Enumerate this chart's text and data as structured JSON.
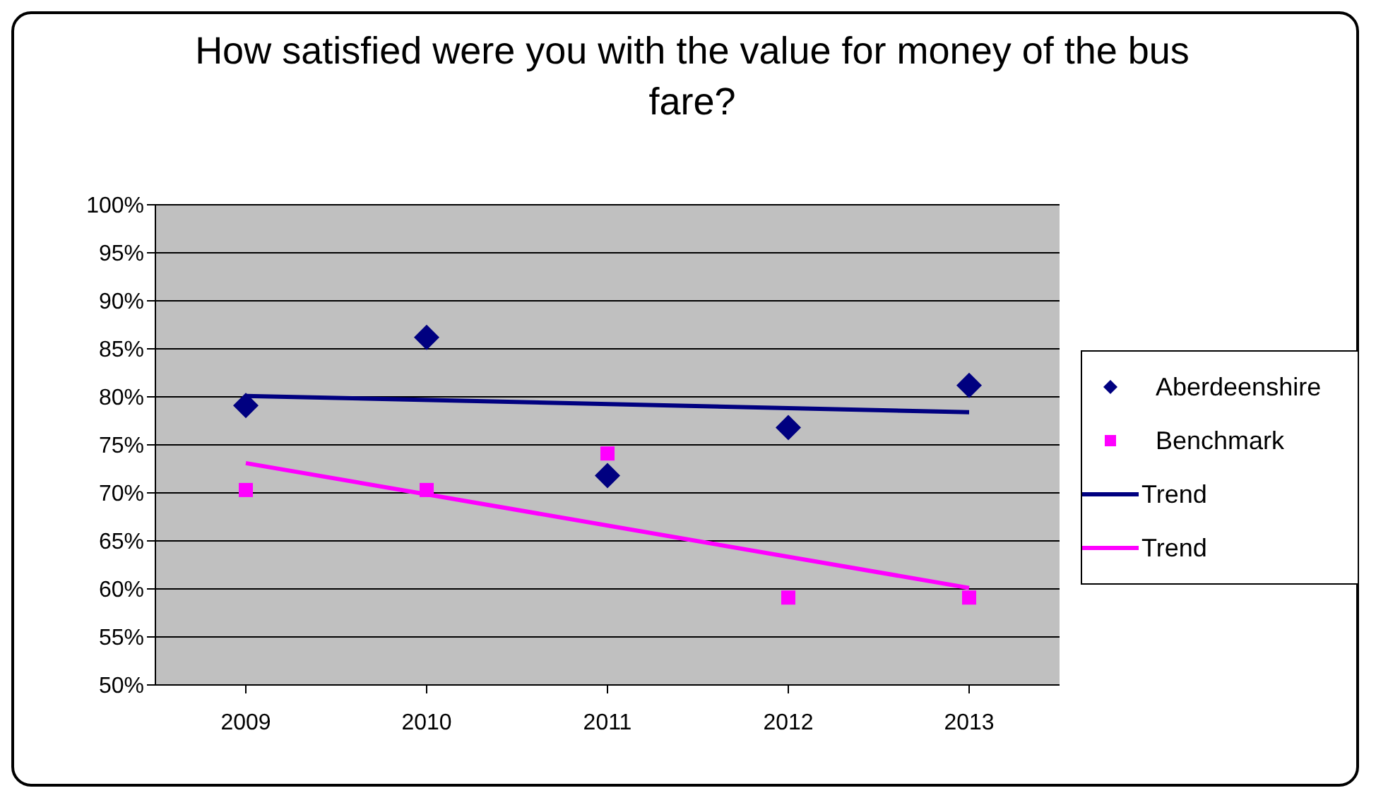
{
  "chart_data": {
    "type": "scatter",
    "title": "How satisfied were you with the value for money of the bus fare?",
    "categories": [
      "2009",
      "2010",
      "2011",
      "2012",
      "2013"
    ],
    "series": [
      {
        "name": "Aberdeenshire",
        "color": "#000080",
        "marker": "diamond",
        "values": [
          79.1,
          86.2,
          71.8,
          76.8,
          81.2
        ]
      },
      {
        "name": "Benchmark",
        "color": "#ff00ff",
        "marker": "square",
        "values": [
          70.3,
          70.3,
          74.1,
          59.1,
          59.1
        ]
      },
      {
        "name": "Trend",
        "type": "line",
        "color": "#000080",
        "marker": "none",
        "values": [
          80.1,
          null,
          null,
          null,
          78.4
        ]
      },
      {
        "name": "Trend",
        "type": "line",
        "color": "#ff00ff",
        "marker": "none",
        "values": [
          73.1,
          null,
          null,
          null,
          60.1
        ]
      }
    ],
    "ylim": [
      50,
      100
    ],
    "yticks": [
      {
        "value": 50,
        "label": "50%"
      },
      {
        "value": 55,
        "label": "55%"
      },
      {
        "value": 60,
        "label": "60%"
      },
      {
        "value": 65,
        "label": "65%"
      },
      {
        "value": 70,
        "label": "70%"
      },
      {
        "value": 75,
        "label": "75%"
      },
      {
        "value": 80,
        "label": "80%"
      },
      {
        "value": 85,
        "label": "85%"
      },
      {
        "value": 90,
        "label": "90%"
      },
      {
        "value": 95,
        "label": "95%"
      },
      {
        "value": 100,
        "label": "100%"
      }
    ],
    "grid": "y",
    "legend": "right"
  }
}
